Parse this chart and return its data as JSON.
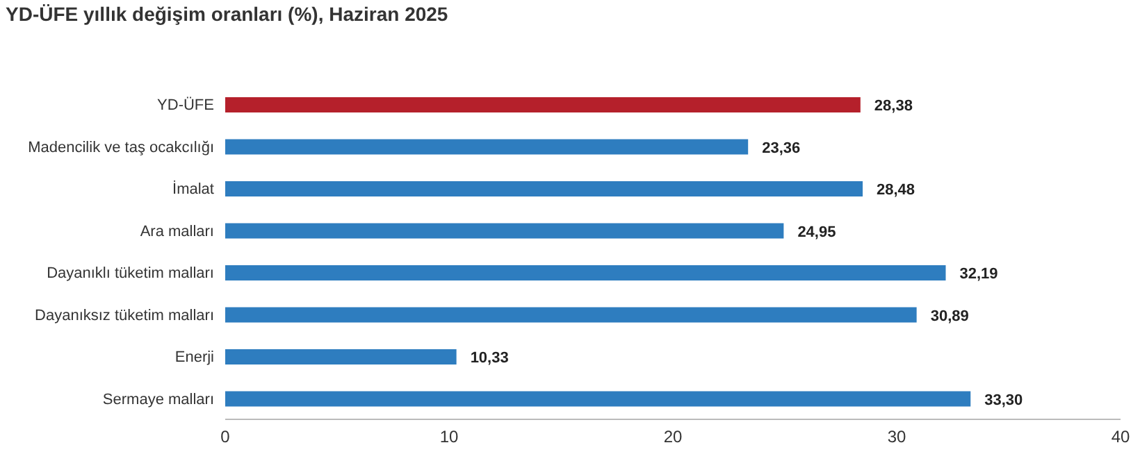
{
  "chart_data": {
    "type": "bar",
    "orientation": "horizontal",
    "title": "YD-ÜFE yıllık değişim oranları (%), Haziran 2025",
    "categories": [
      "YD-ÜFE",
      "Madencilik ve taş ocakcılığı",
      "İmalat",
      "Ara malları",
      "Dayanıklı tüketim malları",
      "Dayanıksız tüketim malları",
      "Enerji",
      "Sermaye malları"
    ],
    "values": [
      28.38,
      23.36,
      28.48,
      24.95,
      32.19,
      30.89,
      10.33,
      33.3
    ],
    "value_labels": [
      "28,38",
      "23,36",
      "28,48",
      "24,95",
      "32,19",
      "30,89",
      "10,33",
      "33,30"
    ],
    "colors": [
      "#b5202b",
      "#2e7dbf",
      "#2e7dbf",
      "#2e7dbf",
      "#2e7dbf",
      "#2e7dbf",
      "#2e7dbf",
      "#2e7dbf"
    ],
    "xlim": [
      0,
      40
    ],
    "xticks": [
      0,
      10,
      20,
      30,
      40
    ],
    "grid": false
  }
}
